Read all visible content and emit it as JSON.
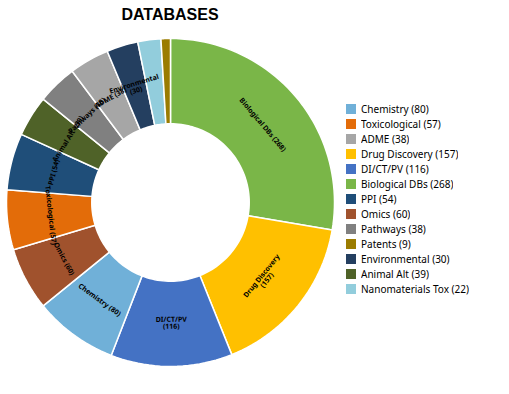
{
  "chart_data": {
    "type": "pie",
    "title": "DATABASES",
    "categories": [
      "Biological DBs (268)",
      "Drug Discovery\n(157)",
      "DI/CT/PV\n(116)",
      "Chemistry (80)",
      "Omics (60)",
      "Toxicological (57)",
      "PPI (54)",
      "Animal Alt  (39)",
      "Pathways (38)",
      "ADME (38)",
      "Environmental\n(30)",
      null,
      null
    ],
    "values": [
      268,
      157,
      116,
      80,
      60,
      57,
      54,
      39,
      38,
      38,
      30,
      22,
      9
    ],
    "colors": [
      "#7ab648",
      "#ffc000",
      "#4472c4",
      "#70b0d8",
      "#a0522d",
      "#e36c09",
      "#1f4e79",
      "#4f6228",
      "#808080",
      "#a6a6a6",
      "#243f60",
      "#92cddc",
      "#9b7c00"
    ],
    "legend": "right",
    "legend_entries": [
      {
        "name": "Chemistry (80)",
        "color": "#70b0d8"
      },
      {
        "name": "Toxicological (57)",
        "color": "#e36c09"
      },
      {
        "name": "ADME (38)",
        "color": "#a6a6a6"
      },
      {
        "name": "Drug Discovery (157)",
        "color": "#ffc000"
      },
      {
        "name": "DI/CT/PV (116)",
        "color": "#4472c4"
      },
      {
        "name": "Biological DBs (268)",
        "color": "#7ab648"
      },
      {
        "name": "PPI (54)",
        "color": "#1f4e79"
      },
      {
        "name": "Omics (60)",
        "color": "#a0522d"
      },
      {
        "name": "Pathways (38)",
        "color": "#808080"
      },
      {
        "name": "Patents (9)",
        "color": "#9b7c00"
      },
      {
        "name": "Environmental (30)",
        "color": "#243f60"
      },
      {
        "name": "Animal Alt  (39)",
        "color": "#4f6228"
      },
      {
        "name": "Nanomaterials Tox (22)",
        "color": "#92cddc"
      }
    ]
  }
}
